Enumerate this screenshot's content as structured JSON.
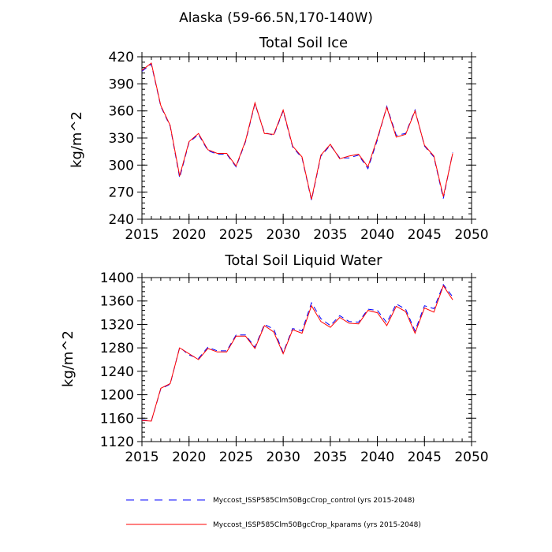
{
  "suptitle": "Alaska (59-66.5N,170-140W)",
  "legend": {
    "entries": [
      {
        "label": "Myccost_ISSP585Clm50BgcCrop_control (yrs 2015-2048)",
        "color": "#0000ff",
        "dash": true
      },
      {
        "label": "Myccost_ISSP585Clm50BgcCrop_kparams (yrs 2015-2048)",
        "color": "#ff0000",
        "dash": false
      }
    ]
  },
  "chart_data": [
    {
      "type": "line",
      "title": "Total Soil Ice",
      "xlabel": "",
      "ylabel": "kg/m^2",
      "xlim": [
        2015,
        2050
      ],
      "ylim": [
        240,
        420
      ],
      "xticks": [
        2015,
        2020,
        2025,
        2030,
        2035,
        2040,
        2045,
        2050
      ],
      "yticks": [
        240,
        270,
        300,
        330,
        360,
        390,
        420
      ],
      "grid": false,
      "x": [
        2015,
        2016,
        2017,
        2018,
        2019,
        2020,
        2021,
        2022,
        2023,
        2024,
        2025,
        2026,
        2027,
        2028,
        2029,
        2030,
        2031,
        2032,
        2033,
        2034,
        2035,
        2036,
        2037,
        2038,
        2039,
        2040,
        2041,
        2042,
        2043,
        2044,
        2045,
        2046,
        2047,
        2048
      ],
      "series": [
        {
          "name": "Myccost_ISSP585Clm50BgcCrop_control (yrs 2015-2048)",
          "color": "#0000ff",
          "values": [
            404,
            412,
            365,
            343,
            286,
            325,
            334,
            316,
            312,
            312,
            298,
            326,
            368,
            336,
            333,
            360,
            320,
            308,
            261,
            310,
            322,
            308,
            308,
            311,
            296,
            328,
            365,
            333,
            335,
            361,
            321,
            309,
            263,
            314
          ]
        },
        {
          "name": "Myccost_ISSP585Clm50BgcCrop_kparams (yrs 2015-2048)",
          "color": "#ff0000",
          "values": [
            405,
            413,
            366,
            344,
            288,
            326,
            335,
            317,
            313,
            313,
            299,
            327,
            369,
            335,
            334,
            361,
            321,
            309,
            262,
            311,
            323,
            307,
            310,
            312,
            298,
            330,
            364,
            331,
            334,
            360,
            322,
            310,
            265,
            313
          ]
        }
      ]
    },
    {
      "type": "line",
      "title": "Total Soil Liquid Water",
      "xlabel": "",
      "ylabel": "kg/m^2",
      "xlim": [
        2015,
        2050
      ],
      "ylim": [
        1120,
        1400
      ],
      "xticks": [
        2015,
        2020,
        2025,
        2030,
        2035,
        2040,
        2045,
        2050
      ],
      "yticks": [
        1120,
        1160,
        1200,
        1240,
        1280,
        1320,
        1360,
        1400
      ],
      "grid": false,
      "x": [
        2015,
        2016,
        2017,
        2018,
        2019,
        2020,
        2021,
        2022,
        2023,
        2024,
        2025,
        2026,
        2027,
        2028,
        2029,
        2030,
        2031,
        2032,
        2033,
        2034,
        2035,
        2036,
        2037,
        2038,
        2039,
        2040,
        2041,
        2042,
        2043,
        2044,
        2045,
        2046,
        2047,
        2048
      ],
      "series": [
        {
          "name": "Myccost_ISSP585Clm50BgcCrop_control (yrs 2015-2048)",
          "color": "#0000ff",
          "values": [
            1157,
            1155,
            1210,
            1218,
            1281,
            1268,
            1262,
            1281,
            1275,
            1275,
            1302,
            1302,
            1281,
            1320,
            1312,
            1272,
            1313,
            1309,
            1357,
            1330,
            1318,
            1335,
            1325,
            1324,
            1346,
            1344,
            1323,
            1355,
            1346,
            1309,
            1352,
            1347,
            1388,
            1367
          ]
        },
        {
          "name": "Myccost_ISSP585Clm50BgcCrop_kparams (yrs 2015-2048)",
          "color": "#ff0000",
          "values": [
            1156,
            1155,
            1211,
            1219,
            1280,
            1270,
            1260,
            1279,
            1273,
            1273,
            1300,
            1300,
            1279,
            1318,
            1307,
            1270,
            1311,
            1305,
            1352,
            1325,
            1315,
            1332,
            1322,
            1321,
            1344,
            1340,
            1318,
            1351,
            1342,
            1305,
            1348,
            1341,
            1386,
            1362
          ]
        }
      ]
    }
  ]
}
